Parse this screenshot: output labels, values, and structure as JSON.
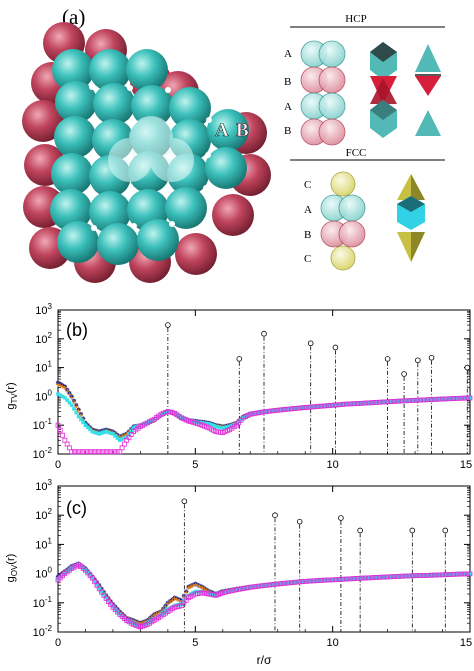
{
  "figure": {
    "panel_a_label": "(a)",
    "panel_b_label": "(b)",
    "panel_c_label": "(c)",
    "layer_label_A": "A",
    "layer_label_B": "B",
    "hcp_title": "HCP",
    "fcc_title": "FCC",
    "hcp_layers": [
      "A",
      "B",
      "A",
      "B"
    ],
    "fcc_layers": [
      "C",
      "A",
      "B",
      "C"
    ]
  },
  "colors": {
    "teal_sphere": "#3cc0bb",
    "red_sphere": "#c0455e",
    "yellow_sphere": "#d8d46a",
    "tetra_teal": "#52b9b6",
    "tetra_red": "#d61f3b",
    "octa_cyan": "#32d2e6",
    "tetra_yellow": "#c8c043",
    "series_blue": "#1a237e",
    "series_orange": "#e07b1e",
    "series_magenta": "#e22bd8",
    "series_cyan": "#35e0e6"
  },
  "chart_data": [
    {
      "type": "line",
      "panel": "(b)",
      "ylabel": "g_TV(r)",
      "xlabel": "",
      "xlim": [
        0,
        15
      ],
      "ylim": [
        0.01,
        1000
      ],
      "yscale": "log",
      "x_ticks": [
        "0",
        "5",
        "10",
        "15"
      ],
      "y_ticks": [
        "10^-2",
        "10^-1",
        "10^0",
        "10^1",
        "10^2",
        "10^3"
      ],
      "x": [
        0,
        0.25,
        0.5,
        0.75,
        1.0,
        1.25,
        1.5,
        1.75,
        2.0,
        2.25,
        2.5,
        2.75,
        3.0,
        3.25,
        3.5,
        3.75,
        4.0,
        4.25,
        4.5,
        4.75,
        5.0,
        5.25,
        5.5,
        5.75,
        6.0,
        6.25,
        6.5,
        6.75,
        7.0,
        7.5,
        8.0,
        8.5,
        9.0,
        9.5,
        10.0,
        10.5,
        11.0,
        11.5,
        12.0,
        12.5,
        13.0,
        13.5,
        14.0,
        14.5,
        15.0
      ],
      "series": [
        {
          "marker": "star",
          "color": "#1a237e",
          "values": [
            3.0,
            2.2,
            1.0,
            0.35,
            0.12,
            0.07,
            0.06,
            0.07,
            0.06,
            0.04,
            0.05,
            0.09,
            0.1,
            0.12,
            0.15,
            0.22,
            0.3,
            0.25,
            0.18,
            0.15,
            0.14,
            0.13,
            0.12,
            0.1,
            0.09,
            0.1,
            0.12,
            0.2,
            0.25,
            0.3,
            0.34,
            0.38,
            0.42,
            0.46,
            0.5,
            0.55,
            0.58,
            0.62,
            0.66,
            0.7,
            0.74,
            0.78,
            0.82,
            0.86,
            0.9
          ]
        },
        {
          "marker": "plus",
          "color": "#e07b1e",
          "values": [
            2.6,
            2.0,
            0.9,
            0.32,
            0.11,
            0.065,
            0.055,
            0.065,
            0.055,
            0.038,
            0.048,
            0.085,
            0.095,
            0.115,
            0.14,
            0.21,
            0.29,
            0.24,
            0.17,
            0.14,
            0.13,
            0.12,
            0.11,
            0.095,
            0.085,
            0.095,
            0.115,
            0.19,
            0.24,
            0.29,
            0.33,
            0.37,
            0.41,
            0.45,
            0.49,
            0.54,
            0.57,
            0.61,
            0.65,
            0.69,
            0.73,
            0.77,
            0.81,
            0.85,
            0.88
          ]
        },
        {
          "marker": "open-square",
          "color": "#e22bd8",
          "values": [
            0.1,
            0.03,
            0.012,
            null,
            null,
            null,
            null,
            null,
            null,
            0.012,
            0.03,
            0.06,
            0.09,
            0.12,
            0.16,
            0.24,
            0.3,
            0.26,
            0.18,
            0.14,
            0.12,
            0.1,
            0.08,
            0.06,
            0.055,
            0.07,
            0.1,
            0.18,
            0.24,
            0.29,
            0.33,
            0.37,
            0.41,
            0.45,
            0.49,
            0.54,
            0.57,
            0.61,
            0.65,
            0.69,
            0.73,
            0.77,
            0.81,
            0.85,
            0.88
          ]
        },
        {
          "marker": "filled-square",
          "color": "#35e0e6",
          "values": [
            1.2,
            0.9,
            0.5,
            0.2,
            0.1,
            0.06,
            0.05,
            0.06,
            0.05,
            0.03,
            0.04,
            0.08,
            0.1,
            0.12,
            0.15,
            0.22,
            0.3,
            0.26,
            0.19,
            0.15,
            0.13,
            0.12,
            0.11,
            0.09,
            0.08,
            0.09,
            0.11,
            0.19,
            0.24,
            0.3,
            0.34,
            0.38,
            0.42,
            0.46,
            0.5,
            0.55,
            0.58,
            0.62,
            0.66,
            0.7,
            0.74,
            0.78,
            0.82,
            0.86,
            0.9
          ]
        }
      ],
      "peaks": [
        {
          "x": 4.0,
          "y": 300
        },
        {
          "x": 6.6,
          "y": 20
        },
        {
          "x": 7.5,
          "y": 150
        },
        {
          "x": 9.2,
          "y": 70
        },
        {
          "x": 10.1,
          "y": 50
        },
        {
          "x": 12.0,
          "y": 20
        },
        {
          "x": 12.6,
          "y": 6
        },
        {
          "x": 13.1,
          "y": 18
        },
        {
          "x": 13.6,
          "y": 22
        },
        {
          "x": 14.9,
          "y": 10
        }
      ]
    },
    {
      "type": "line",
      "panel": "(c)",
      "ylabel": "g_OV(r)",
      "xlabel": "r/σ",
      "xlim": [
        0,
        15
      ],
      "ylim": [
        0.01,
        1000
      ],
      "yscale": "log",
      "x_ticks": [
        "0",
        "5",
        "10",
        "15"
      ],
      "y_ticks": [
        "10^-2",
        "10^-1",
        "10^0",
        "10^1",
        "10^2",
        "10^3"
      ],
      "x": [
        0,
        0.25,
        0.5,
        0.75,
        1.0,
        1.25,
        1.5,
        1.75,
        2.0,
        2.25,
        2.5,
        2.75,
        3.0,
        3.25,
        3.5,
        3.75,
        4.0,
        4.25,
        4.5,
        4.75,
        5.0,
        5.25,
        5.5,
        5.75,
        6.0,
        6.5,
        7.0,
        7.5,
        8.0,
        8.5,
        9.0,
        9.5,
        10.0,
        10.5,
        11.0,
        11.5,
        12.0,
        12.5,
        13.0,
        13.5,
        14.0,
        14.5,
        15.0
      ],
      "series": [
        {
          "marker": "star",
          "color": "#1a237e",
          "values": [
            0.8,
            1.2,
            1.8,
            2.2,
            1.5,
            0.8,
            0.4,
            0.18,
            0.09,
            0.05,
            0.03,
            0.025,
            0.02,
            0.025,
            0.04,
            0.05,
            0.1,
            0.15,
            0.12,
            0.35,
            0.45,
            0.35,
            0.25,
            0.2,
            0.25,
            0.3,
            0.35,
            0.4,
            0.45,
            0.5,
            0.55,
            0.6,
            0.62,
            0.66,
            0.7,
            0.74,
            0.78,
            0.82,
            0.86,
            0.88,
            0.92,
            0.96,
            1.0
          ]
        },
        {
          "marker": "plus",
          "color": "#e07b1e",
          "values": [
            0.7,
            1.1,
            1.7,
            2.1,
            1.4,
            0.75,
            0.38,
            0.17,
            0.085,
            0.048,
            0.029,
            0.024,
            0.019,
            0.024,
            0.038,
            0.048,
            0.095,
            0.14,
            0.11,
            0.33,
            0.42,
            0.33,
            0.24,
            0.19,
            0.24,
            0.29,
            0.34,
            0.39,
            0.44,
            0.49,
            0.54,
            0.58,
            0.61,
            0.65,
            0.69,
            0.73,
            0.77,
            0.81,
            0.85,
            0.87,
            0.91,
            0.95,
            0.98
          ]
        },
        {
          "marker": "open-square",
          "color": "#e22bd8",
          "values": [
            0.6,
            1.0,
            1.5,
            2.0,
            1.3,
            0.7,
            0.3,
            0.14,
            0.07,
            0.04,
            0.025,
            0.018,
            0.015,
            0.018,
            0.025,
            0.035,
            0.05,
            0.07,
            0.08,
            0.15,
            0.2,
            0.22,
            0.2,
            0.18,
            0.22,
            0.28,
            0.34,
            0.39,
            0.44,
            0.49,
            0.54,
            0.58,
            0.61,
            0.65,
            0.69,
            0.73,
            0.77,
            0.81,
            0.85,
            0.87,
            0.91,
            0.95,
            0.98
          ]
        },
        {
          "marker": "filled-square",
          "color": "#35e0e6",
          "values": [
            0.65,
            1.05,
            1.6,
            2.1,
            1.35,
            0.72,
            0.32,
            0.15,
            0.075,
            0.042,
            0.026,
            0.02,
            0.016,
            0.02,
            0.028,
            0.04,
            0.06,
            0.08,
            0.09,
            0.18,
            0.24,
            0.24,
            0.21,
            0.19,
            0.23,
            0.29,
            0.35,
            0.4,
            0.45,
            0.5,
            0.55,
            0.59,
            0.62,
            0.66,
            0.7,
            0.74,
            0.78,
            0.82,
            0.86,
            0.88,
            0.92,
            0.96,
            1.0
          ]
        }
      ],
      "peaks": [
        {
          "x": 4.6,
          "y": 300
        },
        {
          "x": 7.9,
          "y": 100
        },
        {
          "x": 8.8,
          "y": 60
        },
        {
          "x": 10.3,
          "y": 80
        },
        {
          "x": 11.0,
          "y": 30
        },
        {
          "x": 12.9,
          "y": 30
        },
        {
          "x": 14.1,
          "y": 30
        }
      ]
    }
  ]
}
